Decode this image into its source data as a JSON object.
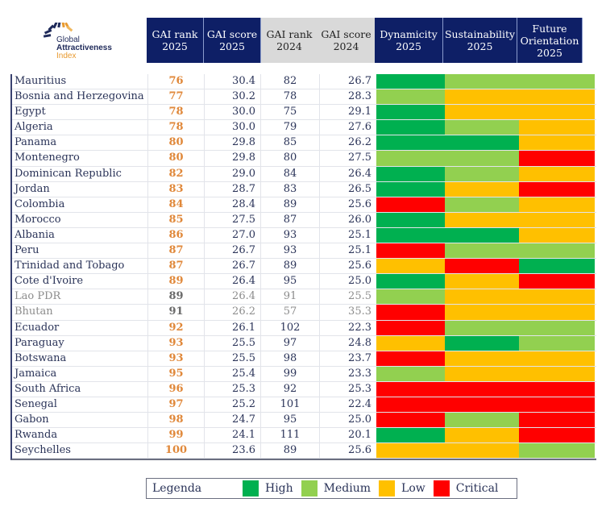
{
  "logo": {
    "line1": "Global",
    "line2": "Attractiveness",
    "line3": "Index"
  },
  "headers": {
    "rank_2025": [
      "GAI rank",
      "2025"
    ],
    "score_2025": [
      "GAI score",
      "2025"
    ],
    "rank_2024": [
      "GAI rank",
      "2024"
    ],
    "score_2024": [
      "GAI score",
      "2024"
    ],
    "dynamicity_2025": [
      "Dynamicity",
      "2025"
    ],
    "sustainability_2025": [
      "Sustainability",
      "2025"
    ],
    "future_orientation_2025": [
      "Future",
      "Orientation",
      "2025"
    ]
  },
  "level_colors": {
    "High": "#00b050",
    "Medium": "#92d050",
    "Low": "#ffc000",
    "Critical": "#ff0000"
  },
  "rows": [
    {
      "country": "Mauritius",
      "rank_2025": "76",
      "score_2025": "30.4",
      "rank_2024": "82",
      "score_2024": "26.7",
      "dynamicity": "High",
      "sustainability": "Medium",
      "future_orientation": "Medium"
    },
    {
      "country": "Bosnia and Herzegovina",
      "rank_2025": "77",
      "score_2025": "30.2",
      "rank_2024": "78",
      "score_2024": "28.3",
      "dynamicity": "Medium",
      "sustainability": "Low",
      "future_orientation": "Low"
    },
    {
      "country": "Egypt",
      "rank_2025": "78",
      "score_2025": "30.0",
      "rank_2024": "75",
      "score_2024": "29.1",
      "dynamicity": "High",
      "sustainability": "Low",
      "future_orientation": "Low"
    },
    {
      "country": "Algeria",
      "rank_2025": "78",
      "score_2025": "30.0",
      "rank_2024": "79",
      "score_2024": "27.6",
      "dynamicity": "High",
      "sustainability": "Medium",
      "future_orientation": "Low"
    },
    {
      "country": "Panama",
      "rank_2025": "80",
      "score_2025": "29.8",
      "rank_2024": "85",
      "score_2024": "26.2",
      "dynamicity": "High",
      "sustainability": "High",
      "future_orientation": "Low"
    },
    {
      "country": "Montenegro",
      "rank_2025": "80",
      "score_2025": "29.8",
      "rank_2024": "80",
      "score_2024": "27.5",
      "dynamicity": "Medium",
      "sustainability": "Medium",
      "future_orientation": "Critical"
    },
    {
      "country": "Dominican Republic",
      "rank_2025": "82",
      "score_2025": "29.0",
      "rank_2024": "84",
      "score_2024": "26.4",
      "dynamicity": "High",
      "sustainability": "Medium",
      "future_orientation": "Low"
    },
    {
      "country": "Jordan",
      "rank_2025": "83",
      "score_2025": "28.7",
      "rank_2024": "83",
      "score_2024": "26.5",
      "dynamicity": "High",
      "sustainability": "Low",
      "future_orientation": "Critical"
    },
    {
      "country": "Colombia",
      "rank_2025": "84",
      "score_2025": "28.4",
      "rank_2024": "89",
      "score_2024": "25.6",
      "dynamicity": "Critical",
      "sustainability": "Medium",
      "future_orientation": "Low"
    },
    {
      "country": "Morocco",
      "rank_2025": "85",
      "score_2025": "27.5",
      "rank_2024": "87",
      "score_2024": "26.0",
      "dynamicity": "High",
      "sustainability": "Low",
      "future_orientation": "Low"
    },
    {
      "country": "Albania",
      "rank_2025": "86",
      "score_2025": "27.0",
      "rank_2024": "93",
      "score_2024": "25.1",
      "dynamicity": "High",
      "sustainability": "High",
      "future_orientation": "Low"
    },
    {
      "country": "Peru",
      "rank_2025": "87",
      "score_2025": "26.7",
      "rank_2024": "93",
      "score_2024": "25.1",
      "dynamicity": "Critical",
      "sustainability": "Medium",
      "future_orientation": "Medium"
    },
    {
      "country": "Trinidad and Tobago",
      "rank_2025": "87",
      "score_2025": "26.7",
      "rank_2024": "89",
      "score_2024": "25.6",
      "dynamicity": "Low",
      "sustainability": "Critical",
      "future_orientation": "High"
    },
    {
      "country": "Cote d'Ivoire",
      "rank_2025": "89",
      "score_2025": "26.4",
      "rank_2024": "95",
      "score_2024": "25.0",
      "dynamicity": "High",
      "sustainability": "Low",
      "future_orientation": "Critical"
    },
    {
      "country": "Lao PDR",
      "rank_2025": "89",
      "score_2025": "26.4",
      "rank_2024": "91",
      "score_2024": "25.5",
      "dynamicity": "Medium",
      "sustainability": "Low",
      "future_orientation": "Low",
      "muted": true
    },
    {
      "country": "Bhutan",
      "rank_2025": "91",
      "score_2025": "26.2",
      "rank_2024": "57",
      "score_2024": "35.3",
      "dynamicity": "Critical",
      "sustainability": "Low",
      "future_orientation": "Low",
      "muted": true
    },
    {
      "country": "Ecuador",
      "rank_2025": "92",
      "score_2025": "26.1",
      "rank_2024": "102",
      "score_2024": "22.3",
      "dynamicity": "Critical",
      "sustainability": "Medium",
      "future_orientation": "Medium"
    },
    {
      "country": "Paraguay",
      "rank_2025": "93",
      "score_2025": "25.5",
      "rank_2024": "97",
      "score_2024": "24.8",
      "dynamicity": "Low",
      "sustainability": "High",
      "future_orientation": "Medium"
    },
    {
      "country": "Botswana",
      "rank_2025": "93",
      "score_2025": "25.5",
      "rank_2024": "98",
      "score_2024": "23.7",
      "dynamicity": "Critical",
      "sustainability": "Low",
      "future_orientation": "Low"
    },
    {
      "country": "Jamaica",
      "rank_2025": "95",
      "score_2025": "25.4",
      "rank_2024": "99",
      "score_2024": "23.3",
      "dynamicity": "Medium",
      "sustainability": "Low",
      "future_orientation": "Low"
    },
    {
      "country": "South Africa",
      "rank_2025": "96",
      "score_2025": "25.3",
      "rank_2024": "92",
      "score_2024": "25.3",
      "dynamicity": "Critical",
      "sustainability": "Critical",
      "future_orientation": "Critical"
    },
    {
      "country": "Senegal",
      "rank_2025": "97",
      "score_2025": "25.2",
      "rank_2024": "101",
      "score_2024": "22.4",
      "dynamicity": "Critical",
      "sustainability": "Critical",
      "future_orientation": "Critical"
    },
    {
      "country": "Gabon",
      "rank_2025": "98",
      "score_2025": "24.7",
      "rank_2024": "95",
      "score_2024": "25.0",
      "dynamicity": "Critical",
      "sustainability": "Medium",
      "future_orientation": "Critical"
    },
    {
      "country": "Rwanda",
      "rank_2025": "99",
      "score_2025": "24.1",
      "rank_2024": "111",
      "score_2024": "20.1",
      "dynamicity": "High",
      "sustainability": "Low",
      "future_orientation": "Critical"
    },
    {
      "country": "Seychelles",
      "rank_2025": "100",
      "score_2025": "23.6",
      "rank_2024": "89",
      "score_2024": "25.6",
      "dynamicity": "Low",
      "sustainability": "Low",
      "future_orientation": "Medium"
    }
  ],
  "legend": {
    "title": "Legenda",
    "items": [
      {
        "label": "High",
        "level": "High"
      },
      {
        "label": "Medium",
        "level": "Medium"
      },
      {
        "label": "Low",
        "level": "Low"
      },
      {
        "label": "Critical",
        "level": "Critical"
      }
    ]
  }
}
